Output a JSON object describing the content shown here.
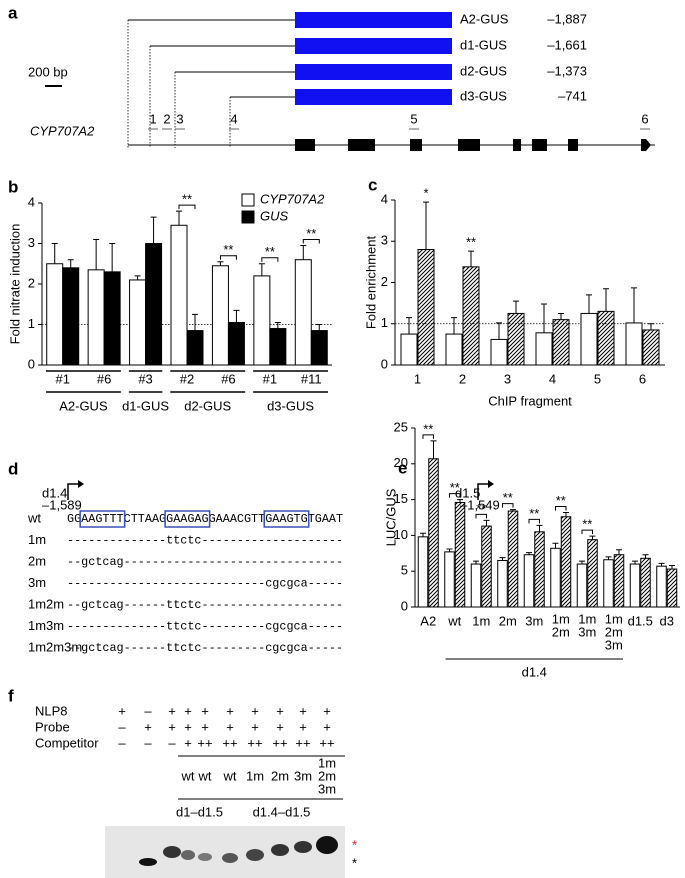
{
  "panel_a": {
    "letter": "a",
    "scale": "200 bp",
    "gene": "CYP707A2",
    "constructs": [
      {
        "name": "A2-GUS",
        "position": "–1,887"
      },
      {
        "name": "d1-GUS",
        "position": "–1,661"
      },
      {
        "name": "d2-GUS",
        "position": "–1,373"
      },
      {
        "name": "d3-GUS",
        "position": "–741"
      }
    ],
    "fragments": [
      "1",
      "2",
      "3",
      "4",
      "5",
      "6"
    ]
  },
  "chart_data": [
    {
      "panel": "b",
      "type": "bar",
      "ylabel": "Fold nitrate induction",
      "categories": [
        "#1",
        "#6",
        "#3",
        "#2",
        "#6",
        "#1",
        "#11"
      ],
      "category_groups": [
        "A2-GUS",
        "A2-GUS",
        "d1-GUS",
        "d2-GUS",
        "d2-GUS",
        "d3-GUS",
        "d3-GUS"
      ],
      "series": [
        {
          "name": "CYP707A2",
          "color": "#ffffff",
          "values": [
            2.5,
            2.35,
            2.1,
            3.45,
            2.45,
            2.2,
            2.6
          ],
          "errors": [
            0.5,
            0.75,
            0.1,
            0.35,
            0.1,
            0.3,
            0.35
          ]
        },
        {
          "name": "GUS",
          "color": "#000000",
          "values": [
            2.4,
            2.3,
            3.0,
            0.85,
            1.05,
            0.9,
            0.85
          ],
          "errors": [
            0.2,
            0.7,
            0.65,
            0.4,
            0.3,
            0.15,
            0.15
          ]
        }
      ],
      "ylim": [
        0,
        4
      ],
      "yticks": [
        0,
        1,
        2,
        3,
        4
      ],
      "refline": 1,
      "significance": [
        null,
        null,
        null,
        "**",
        "**",
        "**",
        "**"
      ],
      "legend": "top-right"
    },
    {
      "panel": "c",
      "type": "bar",
      "ylabel": "Fold enrichment",
      "xlabel": "ChIP fragment",
      "categories": [
        "1",
        "2",
        "3",
        "4",
        "5",
        "6"
      ],
      "series": [
        {
          "color": "#ffffff",
          "values": [
            0.75,
            0.75,
            0.62,
            0.78,
            1.25,
            1.02
          ],
          "errors": [
            0.4,
            0.4,
            0.4,
            0.7,
            0.45,
            0.85
          ]
        },
        {
          "color": "#ffffff",
          "pattern": "hatch",
          "values": [
            2.8,
            2.38,
            1.25,
            1.1,
            1.3,
            0.85
          ],
          "errors": [
            1.15,
            0.38,
            0.3,
            0.15,
            0.55,
            0.15
          ]
        }
      ],
      "ylim": [
        0,
        4
      ],
      "yticks": [
        0,
        1,
        2,
        3,
        4
      ],
      "refline": 1,
      "significance": [
        "*",
        "**",
        null,
        null,
        null,
        null
      ]
    },
    {
      "panel": "e",
      "type": "bar",
      "ylabel": "LUC/GUS",
      "categories": [
        "A2",
        "wt",
        "1m",
        "2m",
        "3m",
        [
          "1m",
          "2m"
        ],
        [
          "1m",
          "3m"
        ],
        [
          "1m",
          "2m",
          "3m"
        ],
        "d1.5",
        "d3"
      ],
      "category_groups": [
        null,
        "d1.4",
        "d1.4",
        "d1.4",
        "d1.4",
        "d1.4",
        "d1.4",
        "d1.4",
        null,
        null
      ],
      "series": [
        {
          "color": "#ffffff",
          "values": [
            9.8,
            7.7,
            6.0,
            6.5,
            7.3,
            8.2,
            6.0,
            6.6,
            6.0,
            5.7
          ],
          "errors": [
            0.5,
            0.4,
            0.4,
            0.4,
            0.3,
            0.7,
            0.4,
            0.4,
            0.4,
            0.4
          ]
        },
        {
          "color": "#ffffff",
          "pattern": "hatch",
          "values": [
            20.7,
            14.6,
            11.3,
            13.4,
            10.5,
            12.6,
            9.4,
            7.3,
            6.8,
            5.3
          ],
          "errors": [
            2.5,
            0.4,
            0.8,
            0.2,
            0.9,
            0.6,
            0.5,
            0.7,
            0.5,
            0.5
          ]
        }
      ],
      "ylim": [
        0,
        25
      ],
      "yticks": [
        0,
        5,
        10,
        15,
        20,
        25
      ],
      "significance": [
        "**",
        "**",
        "**",
        "**",
        "**",
        "**",
        "**",
        null,
        null,
        null
      ]
    }
  ],
  "panel_d": {
    "letter": "d",
    "start": {
      "name": "d1.4",
      "position": "–1,589"
    },
    "end": {
      "name": "d1.5",
      "position": "–1,549"
    },
    "rows": [
      {
        "name": "wt",
        "sequence": "GGAAGTTTCTTAAGGAAGAGGAAACGTTGAAGTGTGAAT"
      },
      {
        "name": "1m",
        "sequence": "--------------ttctc--------------------"
      },
      {
        "name": "2m",
        "sequence": "--gctcag-------------------------------"
      },
      {
        "name": "3m",
        "sequence": "----------------------------cgcgca-----"
      },
      {
        "name": "1m2m",
        "sequence": "--gctcag------ttctc--------------------"
      },
      {
        "name": "1m3m",
        "sequence": "--------------ttctc---------cgcgca-----"
      },
      {
        "name": "1m2m3m",
        "sequence": "--gctcag------ttctc---------cgcgca-----"
      }
    ]
  },
  "panel_f": {
    "letter": "f",
    "rows": [
      {
        "name": "NLP8",
        "lanes": [
          "+",
          "–",
          "+",
          "+",
          "+",
          "+",
          "+",
          "+",
          "+",
          "+"
        ]
      },
      {
        "name": "Probe",
        "lanes": [
          "–",
          "+",
          "+",
          "+",
          "+",
          "+",
          "+",
          "+",
          "+",
          "+"
        ]
      },
      {
        "name": "Competitor",
        "lanes": [
          "–",
          "–",
          "–",
          "+",
          "++",
          "++",
          "++",
          "++",
          "++",
          "++"
        ]
      }
    ],
    "competitors": [
      null,
      null,
      null,
      "wt",
      "wt",
      "wt",
      "1m",
      "2m",
      "3m",
      [
        "1m",
        "2m",
        "3m"
      ]
    ],
    "competitor_groups": [
      null,
      null,
      null,
      "d1–d1.5",
      "d1–d1.5",
      "d1.4–d1.5",
      "d1.4–d1.5",
      "d1.4–d1.5",
      "d1.4–d1.5",
      "d1.4–d1.5"
    ],
    "bands": [
      "*",
      "*"
    ]
  }
}
